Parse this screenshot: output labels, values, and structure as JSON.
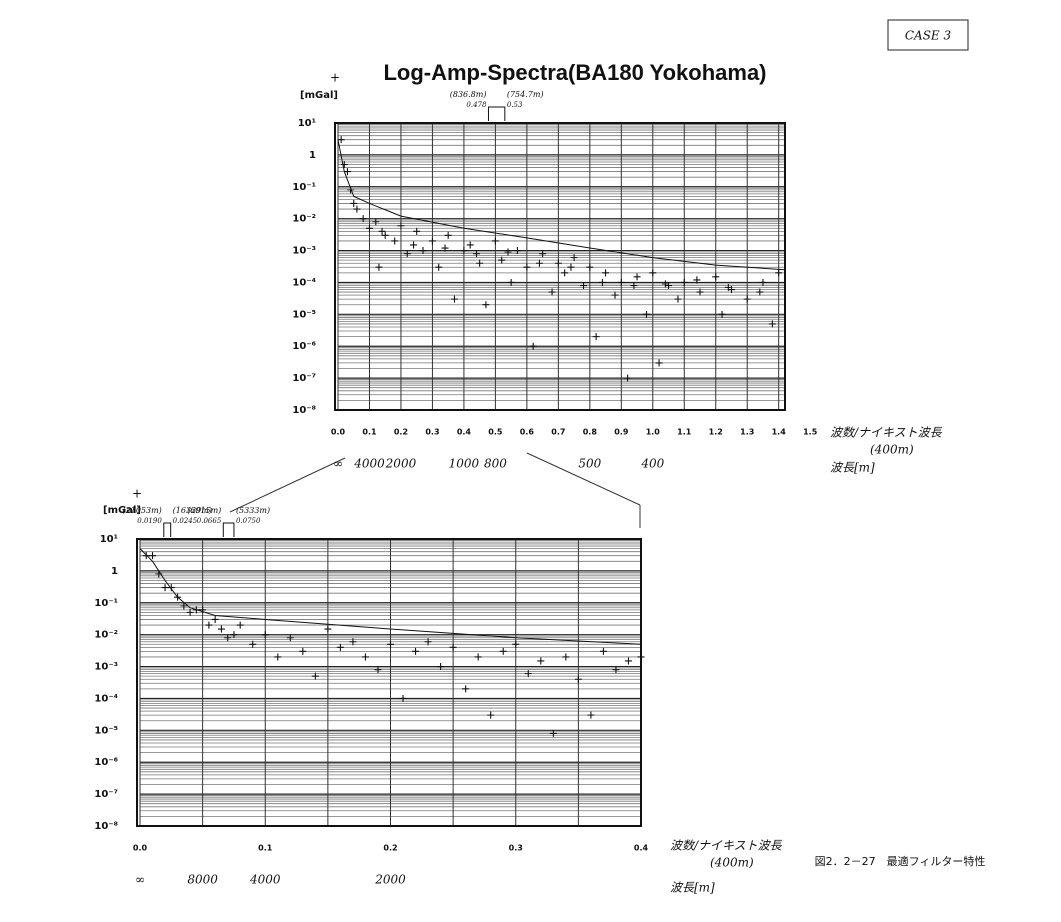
{
  "case_label": "CASE 3",
  "caption": "図2．2－27　最適フィルター特性",
  "chart_data": [
    {
      "type": "scatter",
      "title": "Log-Amp-Spectra(BA180 Yokohama)",
      "y_label": "[mGal]",
      "x_label": "波数/ナイキスト波長",
      "x_label_note": "(400m)",
      "wavelength_axis_label": "波長[m]",
      "yscale": "log",
      "grid": true,
      "xlim": [
        0,
        1.42
      ],
      "ylim": [
        1e-08,
        10
      ],
      "xticks": [
        {
          "value": 0,
          "label": "0.0"
        },
        0.1,
        0.2,
        0.3,
        0.4,
        0.5,
        0.6,
        0.7,
        0.8,
        0.9,
        {
          "value": 1,
          "label": "1.0"
        },
        1.1,
        1.2,
        1.3,
        1.4,
        1.5
      ],
      "yticks": [
        {
          "value": 10,
          "label": "10¹"
        },
        1,
        {
          "value": 0.1,
          "label": "10⁻¹"
        },
        {
          "value": 0.01,
          "label": "10⁻²"
        },
        {
          "value": 0.001,
          "label": "10⁻³"
        },
        {
          "value": 0.0001,
          "label": "10⁻⁴"
        },
        {
          "value": 1e-05,
          "label": "10⁻⁵"
        },
        {
          "value": 1e-06,
          "label": "10⁻⁶"
        },
        {
          "value": 1e-07,
          "label": "10⁻⁷"
        },
        {
          "value": 1e-08,
          "label": "10⁻⁸"
        }
      ],
      "wavelength_ticks": [
        {
          "value": 0,
          "label": "∞"
        },
        {
          "value": 0.1,
          "label": "4000"
        },
        {
          "value": 0.2,
          "label": "2000"
        },
        {
          "value": 0.4,
          "label": "1000"
        },
        {
          "value": 0.5,
          "label": "800"
        },
        {
          "value": 0.8,
          "label": "500"
        },
        {
          "value": 1,
          "label": "400"
        }
      ],
      "band_marks": [
        {
          "from": 0.478,
          "to": 0.53,
          "from_label": "(836.8m)",
          "to_label": "(754.7m)"
        }
      ],
      "series": [
        {
          "type": "scatter",
          "color": "#111111",
          "x": [
            0.01,
            0.02,
            0.03,
            0.04,
            0.05,
            0.06,
            0.08,
            0.1,
            0.12,
            0.13,
            0.14,
            0.15,
            0.18,
            0.2,
            0.22,
            0.24,
            0.25,
            0.27,
            0.3,
            0.32,
            0.34,
            0.35,
            0.37,
            0.4,
            0.42,
            0.44,
            0.45,
            0.47,
            0.5,
            0.52,
            0.54,
            0.55,
            0.57,
            0.6,
            0.62,
            0.64,
            0.65,
            0.68,
            0.7,
            0.72,
            0.74,
            0.75,
            0.78,
            0.8,
            0.82,
            0.84,
            0.85,
            0.88,
            0.9,
            0.92,
            0.94,
            0.95,
            0.98,
            1.0,
            1.02,
            1.04,
            1.05,
            1.08,
            1.1,
            1.14,
            1.15,
            1.2,
            1.22,
            1.24,
            1.25,
            1.3,
            1.34,
            1.35,
            1.38,
            1.4
          ],
          "values": [
            3,
            0.5,
            0.3,
            0.08,
            0.03,
            0.02,
            0.01,
            0.005,
            0.008,
            0.0003,
            0.004,
            0.003,
            0.002,
            0.006,
            0.0008,
            0.0015,
            0.004,
            0.001,
            0.002,
            0.0003,
            0.0012,
            0.003,
            3e-05,
            0.001,
            0.0015,
            0.0008,
            0.0004,
            2e-05,
            0.002,
            0.0005,
            0.0009,
            0.0001,
            0.001,
            0.0003,
            1e-06,
            0.0004,
            0.0008,
            5e-05,
            0.0004,
            0.0002,
            0.0003,
            0.0006,
            8e-05,
            0.0003,
            2e-06,
            0.0001,
            0.0002,
            4e-05,
            0.0001,
            1e-07,
            8e-05,
            0.00015,
            1e-05,
            0.0002,
            3e-07,
            9e-05,
            8e-05,
            3e-05,
            0.0001,
            0.00012,
            5e-05,
            0.00015,
            1e-05,
            7e-05,
            6e-05,
            3e-05,
            5e-05,
            0.0001,
            5e-06,
            0.0002
          ]
        },
        {
          "type": "line",
          "color": "#111111",
          "x": [
            0,
            0.02,
            0.05,
            0.1,
            0.2,
            0.4,
            0.6,
            0.8,
            1.0,
            1.2,
            1.42
          ],
          "values": [
            3,
            0.3,
            0.05,
            0.03,
            0.012,
            0.005,
            0.0025,
            0.0012,
            0.0006,
            0.00035,
            0.00025
          ]
        }
      ]
    },
    {
      "type": "scatter",
      "y_label": "[mGal]",
      "x_label": "波数/ナイキスト波長",
      "x_label_note": "(400m)",
      "wavelength_axis_label": "波長[m]",
      "yscale": "log",
      "grid": true,
      "xlim": [
        0,
        0.4
      ],
      "ylim": [
        1e-08,
        10
      ],
      "xticks": [
        {
          "value": 0,
          "label": "0.0"
        },
        0.1,
        0.2,
        0.3,
        0.4
      ],
      "minor_xticks": [
        0.05,
        0.15,
        0.25,
        0.35
      ],
      "yticks": [
        {
          "value": 10,
          "label": "10¹"
        },
        1,
        {
          "value": 0.1,
          "label": "10⁻¹"
        },
        {
          "value": 0.01,
          "label": "10⁻²"
        },
        {
          "value": 0.001,
          "label": "10⁻³"
        },
        {
          "value": 0.0001,
          "label": "10⁻⁴"
        },
        {
          "value": 1e-05,
          "label": "10⁻⁵"
        },
        {
          "value": 1e-06,
          "label": "10⁻⁶"
        },
        {
          "value": 1e-07,
          "label": "10⁻⁷"
        },
        {
          "value": 1e-08,
          "label": "10⁻⁸"
        }
      ],
      "wavelength_ticks": [
        {
          "value": 0,
          "label": "∞"
        },
        {
          "value": 0.05,
          "label": "8000"
        },
        {
          "value": 0.1,
          "label": "4000"
        },
        {
          "value": 0.2,
          "label": "2000"
        }
      ],
      "band_marks": [
        {
          "from": {
            "value": 0.019,
            "label": "0.0190"
          },
          "to": 0.0245,
          "from_label": "(21053m)",
          "to_label": "(16329m)"
        },
        {
          "from": 0.0665,
          "to": {
            "value": 0.075,
            "label": "0.0750"
          },
          "from_label": "(6015m)",
          "to_label": "(5333m)"
        }
      ],
      "series": [
        {
          "type": "scatter",
          "color": "#111111",
          "x": [
            0.005,
            0.01,
            0.015,
            0.02,
            0.025,
            0.03,
            0.035,
            0.04,
            0.045,
            0.05,
            0.055,
            0.06,
            0.065,
            0.07,
            0.075,
            0.08,
            0.09,
            0.1,
            0.11,
            0.12,
            0.13,
            0.14,
            0.15,
            0.16,
            0.17,
            0.18,
            0.19,
            0.2,
            0.21,
            0.22,
            0.23,
            0.24,
            0.25,
            0.26,
            0.27,
            0.28,
            0.29,
            0.3,
            0.31,
            0.32,
            0.33,
            0.34,
            0.35,
            0.36,
            0.37,
            0.38,
            0.39,
            0.4
          ],
          "values": [
            3,
            3,
            0.8,
            0.3,
            0.3,
            0.15,
            0.08,
            0.05,
            0.06,
            0.06,
            0.02,
            0.03,
            0.015,
            0.008,
            0.01,
            0.02,
            0.005,
            0.01,
            0.002,
            0.008,
            0.003,
            0.0005,
            0.015,
            0.004,
            0.006,
            0.002,
            0.0008,
            0.005,
            0.0001,
            0.003,
            0.006,
            0.001,
            0.004,
            0.0002,
            0.002,
            3e-05,
            0.003,
            0.005,
            0.0006,
            0.0015,
            8e-06,
            0.002,
            0.0004,
            3e-05,
            0.003,
            0.0008,
            0.0015,
            0.002
          ]
        },
        {
          "type": "line",
          "color": "#111111",
          "x": [
            0,
            0.01,
            0.02,
            0.03,
            0.04,
            0.06,
            0.1,
            0.2,
            0.3,
            0.4
          ],
          "values": [
            5,
            2,
            0.5,
            0.15,
            0.07,
            0.04,
            0.03,
            0.015,
            0.008,
            0.005
          ]
        }
      ]
    }
  ]
}
